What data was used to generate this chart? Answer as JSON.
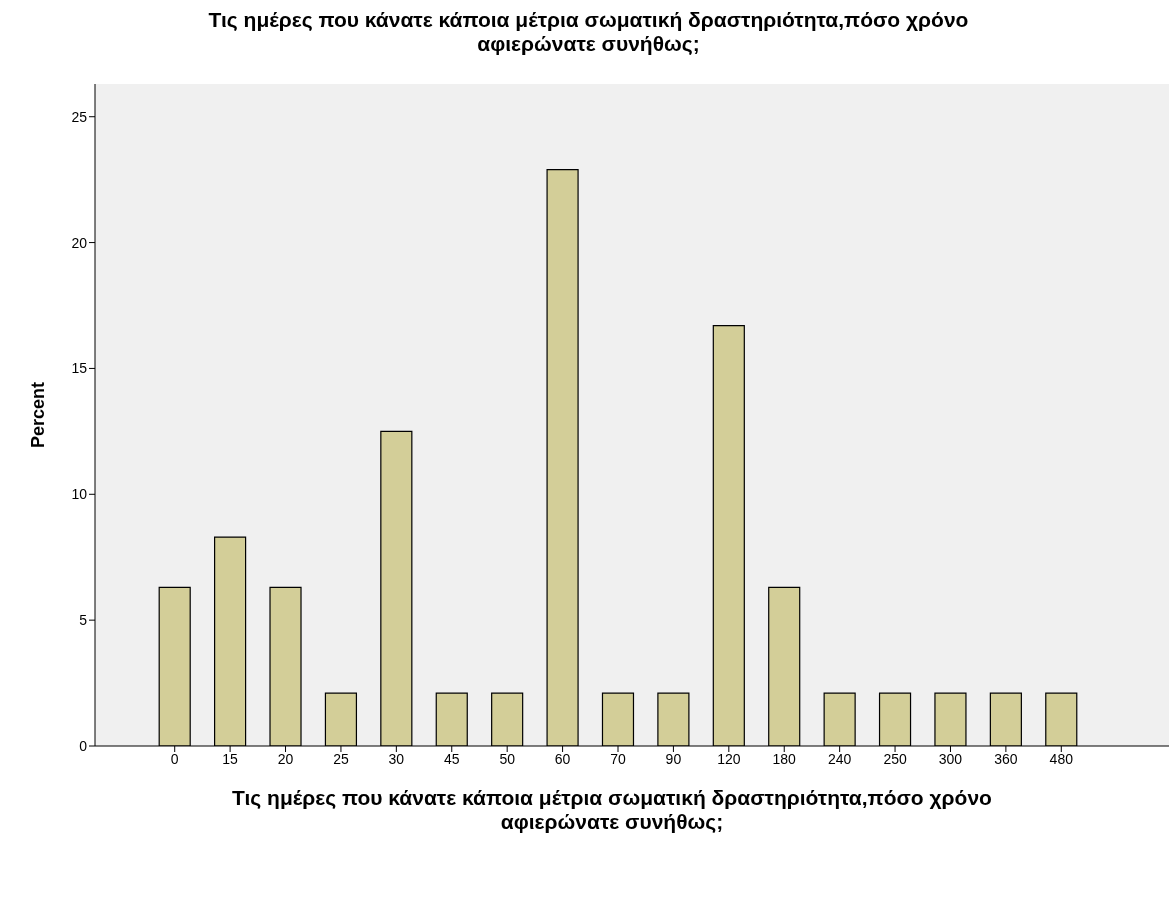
{
  "chart_data": {
    "type": "bar",
    "title": "Τις ημέρες που κάνατε κάποια μέτρια σωματική δραστηριότητα,πόσο χρόνο αφιερώνατε συνήθως;",
    "xlabel": "Τις ημέρες που κάνατε κάποια μέτρια σωματική δραστηριότητα,πόσο χρόνο αφιερώνατε συνήθως;",
    "ylabel": "Percent",
    "categories": [
      "0",
      "15",
      "20",
      "25",
      "30",
      "45",
      "50",
      "60",
      "70",
      "90",
      "120",
      "180",
      "240",
      "250",
      "300",
      "360",
      "480"
    ],
    "values": [
      6.3,
      8.3,
      6.3,
      2.1,
      12.5,
      2.1,
      2.1,
      22.9,
      2.1,
      2.1,
      16.7,
      6.3,
      2.1,
      2.1,
      2.1,
      2.1,
      2.1
    ],
    "color": "#d3ce98",
    "ylim": [
      0,
      26.3
    ],
    "yticks": [
      0,
      5,
      10,
      15,
      20,
      25
    ],
    "grid": false
  }
}
